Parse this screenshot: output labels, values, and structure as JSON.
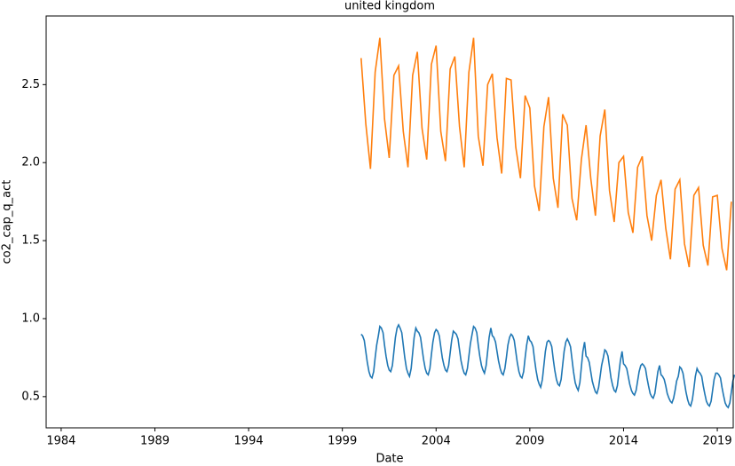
{
  "chart_data": {
    "type": "line",
    "title": "united kingdom",
    "x_label": "Date",
    "y_label": "co2_cap_q_act",
    "xlim": [
      1983.2,
      2019.85
    ],
    "xticks": [
      1984,
      1989,
      1994,
      1999,
      2004,
      2009,
      2014,
      2019
    ],
    "ylim": [
      0.3,
      2.94
    ],
    "yticks": [
      0.5,
      {
        "value": 1,
        "label": "1.0"
      },
      1.5,
      {
        "value": 2,
        "label": "2.0"
      },
      2.5
    ],
    "series": [
      {
        "color": "#1f77b4",
        "x": [
          2000,
          2000.08,
          2000.17,
          2000.25,
          2000.33,
          2000.42,
          2000.5,
          2000.58,
          2000.67,
          2000.75,
          2000.83,
          2000.92,
          2001,
          2001.08,
          2001.17,
          2001.25,
          2001.33,
          2001.42,
          2001.5,
          2001.58,
          2001.67,
          2001.75,
          2001.83,
          2001.92,
          2002,
          2002.08,
          2002.17,
          2002.25,
          2002.33,
          2002.42,
          2002.5,
          2002.58,
          2002.67,
          2002.75,
          2002.83,
          2002.92,
          2003,
          2003.08,
          2003.17,
          2003.25,
          2003.33,
          2003.42,
          2003.5,
          2003.58,
          2003.67,
          2003.75,
          2003.83,
          2003.92,
          2004,
          2004.08,
          2004.17,
          2004.25,
          2004.33,
          2004.42,
          2004.5,
          2004.58,
          2004.67,
          2004.75,
          2004.83,
          2004.92,
          2005,
          2005.08,
          2005.17,
          2005.25,
          2005.33,
          2005.42,
          2005.5,
          2005.58,
          2005.67,
          2005.75,
          2005.83,
          2005.92,
          2006,
          2006.08,
          2006.17,
          2006.25,
          2006.33,
          2006.42,
          2006.5,
          2006.58,
          2006.67,
          2006.75,
          2006.83,
          2006.92,
          2007,
          2007.08,
          2007.17,
          2007.25,
          2007.33,
          2007.42,
          2007.5,
          2007.58,
          2007.67,
          2007.75,
          2007.83,
          2007.92,
          2008,
          2008.08,
          2008.17,
          2008.25,
          2008.33,
          2008.42,
          2008.5,
          2008.58,
          2008.67,
          2008.75,
          2008.83,
          2008.92,
          2009,
          2009.08,
          2009.17,
          2009.25,
          2009.33,
          2009.42,
          2009.5,
          2009.58,
          2009.67,
          2009.75,
          2009.83,
          2009.92,
          2010,
          2010.08,
          2010.17,
          2010.25,
          2010.33,
          2010.42,
          2010.5,
          2010.58,
          2010.67,
          2010.75,
          2010.83,
          2010.92,
          2011,
          2011.08,
          2011.17,
          2011.25,
          2011.33,
          2011.42,
          2011.5,
          2011.58,
          2011.67,
          2011.75,
          2011.83,
          2011.92,
          2012,
          2012.08,
          2012.17,
          2012.25,
          2012.33,
          2012.42,
          2012.5,
          2012.58,
          2012.67,
          2012.75,
          2012.83,
          2012.92,
          2013,
          2013.08,
          2013.17,
          2013.25,
          2013.33,
          2013.42,
          2013.5,
          2013.58,
          2013.67,
          2013.75,
          2013.83,
          2013.92,
          2014,
          2014.08,
          2014.17,
          2014.25,
          2014.33,
          2014.42,
          2014.5,
          2014.58,
          2014.67,
          2014.75,
          2014.83,
          2014.92,
          2015,
          2015.08,
          2015.17,
          2015.25,
          2015.33,
          2015.42,
          2015.5,
          2015.58,
          2015.67,
          2015.75,
          2015.83,
          2015.92,
          2016,
          2016.08,
          2016.17,
          2016.25,
          2016.33,
          2016.42,
          2016.5,
          2016.58,
          2016.67,
          2016.75,
          2016.83,
          2016.92,
          2017,
          2017.08,
          2017.17,
          2017.25,
          2017.33,
          2017.42,
          2017.5,
          2017.58,
          2017.67,
          2017.75,
          2017.83,
          2017.92,
          2018,
          2018.08,
          2018.17,
          2018.25,
          2018.33,
          2018.42,
          2018.5,
          2018.58,
          2018.67,
          2018.75,
          2018.83,
          2018.92,
          2019,
          2019.08,
          2019.17,
          2019.25,
          2019.33,
          2019.42,
          2019.5,
          2019.58,
          2019.67,
          2019.75,
          2019.83,
          2019.92
        ],
        "values": [
          0.9,
          0.89,
          0.86,
          0.79,
          0.72,
          0.66,
          0.63,
          0.62,
          0.66,
          0.75,
          0.83,
          0.89,
          0.95,
          0.94,
          0.91,
          0.83,
          0.76,
          0.7,
          0.67,
          0.66,
          0.7,
          0.79,
          0.88,
          0.94,
          0.96,
          0.94,
          0.91,
          0.83,
          0.75,
          0.68,
          0.65,
          0.63,
          0.68,
          0.78,
          0.88,
          0.94,
          0.92,
          0.91,
          0.88,
          0.81,
          0.74,
          0.68,
          0.65,
          0.64,
          0.68,
          0.77,
          0.85,
          0.91,
          0.93,
          0.92,
          0.89,
          0.82,
          0.75,
          0.7,
          0.67,
          0.66,
          0.7,
          0.78,
          0.86,
          0.92,
          0.91,
          0.9,
          0.87,
          0.8,
          0.73,
          0.68,
          0.65,
          0.64,
          0.68,
          0.76,
          0.84,
          0.9,
          0.95,
          0.94,
          0.91,
          0.83,
          0.76,
          0.7,
          0.67,
          0.65,
          0.7,
          0.79,
          0.88,
          0.94,
          0.89,
          0.88,
          0.85,
          0.79,
          0.73,
          0.68,
          0.65,
          0.64,
          0.68,
          0.75,
          0.83,
          0.88,
          0.9,
          0.89,
          0.86,
          0.79,
          0.72,
          0.66,
          0.63,
          0.62,
          0.66,
          0.75,
          0.83,
          0.89,
          0.86,
          0.85,
          0.82,
          0.74,
          0.67,
          0.61,
          0.58,
          0.56,
          0.61,
          0.7,
          0.79,
          0.85,
          0.86,
          0.85,
          0.82,
          0.74,
          0.67,
          0.61,
          0.58,
          0.57,
          0.61,
          0.7,
          0.79,
          0.85,
          0.87,
          0.85,
          0.82,
          0.74,
          0.66,
          0.59,
          0.56,
          0.54,
          0.59,
          0.69,
          0.79,
          0.85,
          0.76,
          0.75,
          0.72,
          0.66,
          0.6,
          0.56,
          0.53,
          0.52,
          0.56,
          0.63,
          0.7,
          0.75,
          0.8,
          0.79,
          0.76,
          0.69,
          0.62,
          0.57,
          0.54,
          0.53,
          0.57,
          0.65,
          0.73,
          0.79,
          0.71,
          0.7,
          0.68,
          0.63,
          0.58,
          0.54,
          0.52,
          0.51,
          0.54,
          0.6,
          0.66,
          0.7,
          0.71,
          0.7,
          0.68,
          0.62,
          0.57,
          0.52,
          0.5,
          0.49,
          0.52,
          0.59,
          0.66,
          0.7,
          0.64,
          0.63,
          0.61,
          0.57,
          0.52,
          0.49,
          0.47,
          0.46,
          0.49,
          0.54,
          0.6,
          0.63,
          0.69,
          0.68,
          0.65,
          0.59,
          0.53,
          0.48,
          0.45,
          0.44,
          0.48,
          0.55,
          0.63,
          0.68,
          0.66,
          0.65,
          0.63,
          0.57,
          0.52,
          0.47,
          0.45,
          0.44,
          0.47,
          0.54,
          0.61,
          0.65,
          0.65,
          0.64,
          0.62,
          0.56,
          0.51,
          0.46,
          0.44,
          0.43,
          0.46,
          0.53,
          0.6,
          0.64
        ]
      },
      {
        "color": "#ff7f0e",
        "x": [
          2000,
          2000.25,
          2000.5,
          2000.75,
          2001,
          2001.25,
          2001.5,
          2001.75,
          2002,
          2002.25,
          2002.5,
          2002.75,
          2003,
          2003.25,
          2003.5,
          2003.75,
          2004,
          2004.25,
          2004.5,
          2004.75,
          2005,
          2005.25,
          2005.5,
          2005.75,
          2006,
          2006.25,
          2006.5,
          2006.75,
          2007,
          2007.25,
          2007.5,
          2007.75,
          2008,
          2008.25,
          2008.5,
          2008.75,
          2009,
          2009.25,
          2009.5,
          2009.75,
          2010,
          2010.25,
          2010.5,
          2010.75,
          2011,
          2011.25,
          2011.5,
          2011.75,
          2012,
          2012.25,
          2012.5,
          2012.75,
          2013,
          2013.25,
          2013.5,
          2013.75,
          2014,
          2014.25,
          2014.5,
          2014.75,
          2015,
          2015.25,
          2015.5,
          2015.75,
          2016,
          2016.25,
          2016.5,
          2016.75,
          2017,
          2017.25,
          2017.5,
          2017.75,
          2018,
          2018.25,
          2018.5,
          2018.75,
          2019,
          2019.25,
          2019.5,
          2019.75
        ],
        "values": [
          2.67,
          2.25,
          1.96,
          2.58,
          2.8,
          2.28,
          2.03,
          2.56,
          2.62,
          2.2,
          1.97,
          2.56,
          2.71,
          2.22,
          2.02,
          2.63,
          2.75,
          2.2,
          2.01,
          2.6,
          2.68,
          2.23,
          1.97,
          2.58,
          2.8,
          2.17,
          1.98,
          2.5,
          2.57,
          2.16,
          1.93,
          2.54,
          2.53,
          2.1,
          1.9,
          2.43,
          2.35,
          1.85,
          1.69,
          2.23,
          2.42,
          1.9,
          1.71,
          2.31,
          2.24,
          1.77,
          1.63,
          2.02,
          2.24,
          1.9,
          1.66,
          2.17,
          2.34,
          1.82,
          1.62,
          2.0,
          2.04,
          1.68,
          1.55,
          1.97,
          2.04,
          1.66,
          1.5,
          1.79,
          1.89,
          1.58,
          1.38,
          1.83,
          1.89,
          1.48,
          1.33,
          1.79,
          1.84,
          1.47,
          1.34,
          1.78,
          1.79,
          1.45,
          1.31,
          1.75
        ]
      }
    ]
  }
}
